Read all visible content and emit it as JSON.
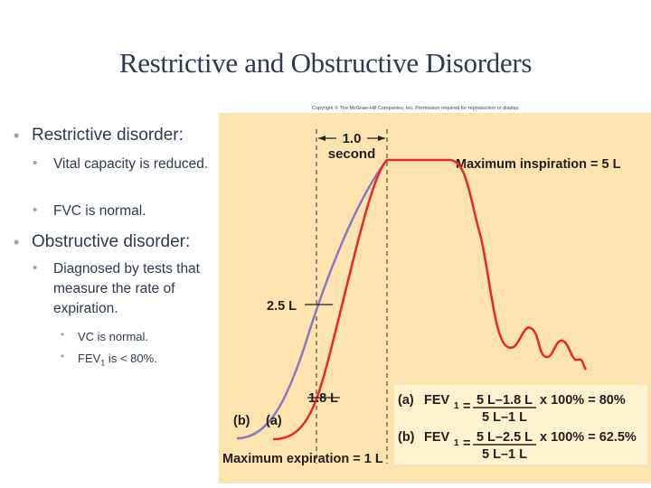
{
  "slide": {
    "title": "Restrictive and Obstructive Disorders",
    "bullets": {
      "restrictive": "Restrictive disorder:",
      "vc_reduced": "Vital capacity is reduced.",
      "fvc_normal": "FVC is normal.",
      "obstructive": "Obstructive disorder:",
      "diagnosed": "Diagnosed by tests that measure the rate of expiration.",
      "vc_normal": "VC is normal.",
      "fev1_prefix": "FEV",
      "fev1_sub": "1",
      "fev1_suffix": " is < 80%."
    }
  },
  "figure": {
    "copyright": "Copyright © The McGraw-Hill Companies, Inc. Permission required for reproduction or display.",
    "time_label_line1": "1.0",
    "time_label_line2": "second",
    "max_inspiration": "Maximum inspiration = 5 L",
    "max_expiration": "Maximum expiration = 1 L",
    "label_2_5": "2.5 L",
    "label_1_8": "1.8 L",
    "curve_b": "(b)",
    "curve_a": "(a)",
    "eq_a_tag": "(a)",
    "eq_a_fev": "FEV",
    "eq_a_sub": "1",
    "eq_a_num": "5 L–1.8 L",
    "eq_a_den": "5 L–1 L",
    "eq_a_result": "x 100% = 80%",
    "eq_b_tag": "(b)",
    "eq_b_fev": "FEV",
    "eq_b_sub": "1",
    "eq_b_num": "5 L–2.5 L",
    "eq_b_den": "5 L–1 L",
    "eq_b_result": "x 100% = 62.5%",
    "eq_equals": "=",
    "colors": {
      "panel": "#fde3ae",
      "equation_box": "#fef3cf",
      "curve_a": "#e8262c",
      "curve_b": "#8c78c4",
      "text": "#231f20"
    }
  }
}
